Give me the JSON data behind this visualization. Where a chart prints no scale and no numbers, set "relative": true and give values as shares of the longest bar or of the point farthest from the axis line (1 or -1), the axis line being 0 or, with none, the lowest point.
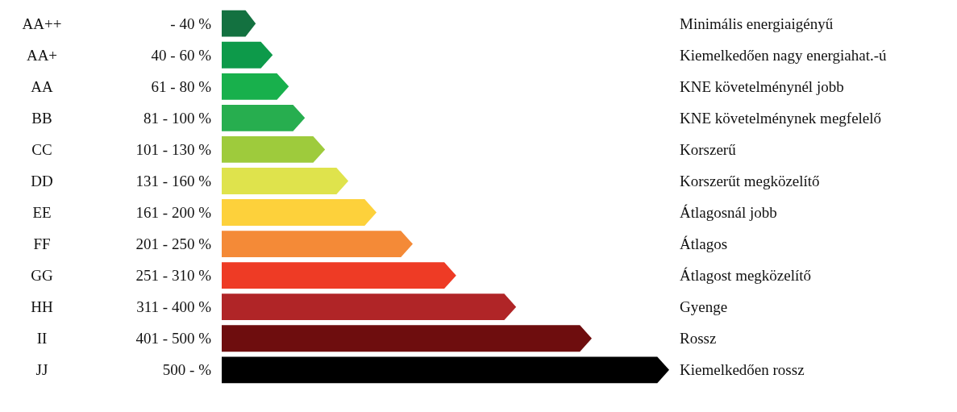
{
  "chart_data": {
    "type": "bar",
    "orientation": "horizontal",
    "relative": true,
    "categories": [
      "AA++",
      "AA+",
      "AA",
      "BB",
      "CC",
      "DD",
      "EE",
      "FF",
      "GG",
      "HH",
      "II",
      "JJ"
    ],
    "values": [
      0.076,
      0.114,
      0.15,
      0.186,
      0.231,
      0.283,
      0.346,
      0.427,
      0.524,
      0.658,
      0.827,
      1
    ],
    "colors": [
      "#137140",
      "#0d9a4a",
      "#18b04c",
      "#27ae4f",
      "#9ecb3c",
      "#dfe34c",
      "#fdd13b",
      "#f48a37",
      "#ee3b25",
      "#b02527",
      "#6e0d0e",
      "#000000"
    ],
    "annotations": [
      "- 40 %",
      "40 - 60 %",
      "61 - 80 %",
      "81 - 100 %",
      "101 - 130 %",
      "131 - 160 %",
      "161 - 200 %",
      "201 - 250 %",
      "251 - 310 %",
      "311 - 400 %",
      "401 - 500 %",
      "500 - %",
      "Minimális energiaigényű",
      "Kiemelkedően nagy energiahat.-ú",
      "KNE követelménynél jobb",
      "KNE követelménynek megfelelő",
      "Korszerű",
      "Korszerűt megközelítő",
      "Átlagosnál jobb",
      "Átlagos",
      "Átlagost megközelítő",
      "Gyenge",
      "Rossz",
      "Kiemelkedően rossz"
    ]
  }
}
